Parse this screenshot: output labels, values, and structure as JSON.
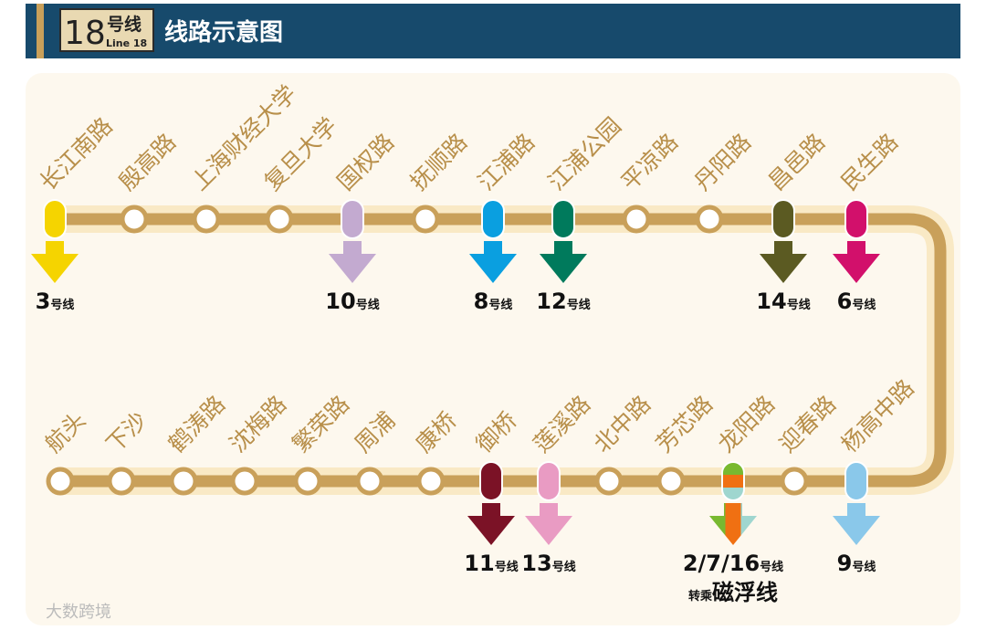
{
  "header": {
    "badge_number": "18",
    "badge_suffix": "号线",
    "badge_sub": "Line 18",
    "title": "线路示意图"
  },
  "top_stations": [
    {
      "name": "长江南路",
      "transfer": {
        "number": "3",
        "suffix": "号线",
        "colors": [
          "#f5d400"
        ]
      }
    },
    {
      "name": "殷高路"
    },
    {
      "name": "上海财经大学"
    },
    {
      "name": "复旦大学"
    },
    {
      "name": "国权路",
      "transfer": {
        "number": "10",
        "suffix": "号线",
        "colors": [
          "#c3aad0"
        ]
      }
    },
    {
      "name": "抚顺路"
    },
    {
      "name": "江浦路",
      "transfer": {
        "number": "8",
        "suffix": "号线",
        "colors": [
          "#0a9fe0"
        ]
      }
    },
    {
      "name": "江浦公园",
      "transfer": {
        "number": "12",
        "suffix": "号线",
        "colors": [
          "#007a5c"
        ]
      }
    },
    {
      "name": "平凉路"
    },
    {
      "name": "丹阳路"
    },
    {
      "name": "昌邑路",
      "transfer": {
        "number": "14",
        "suffix": "号线",
        "colors": [
          "#5b5a22"
        ]
      }
    },
    {
      "name": "民生路",
      "transfer": {
        "number": "6",
        "suffix": "号线",
        "colors": [
          "#d2106b"
        ]
      }
    }
  ],
  "bottom_stations": [
    {
      "name": "航头"
    },
    {
      "name": "下沙"
    },
    {
      "name": "鹤涛路"
    },
    {
      "name": "沈梅路"
    },
    {
      "name": "繁荣路"
    },
    {
      "name": "周浦"
    },
    {
      "name": "康桥"
    },
    {
      "name": "御桥",
      "transfer": {
        "number": "11",
        "suffix": "号线",
        "colors": [
          "#7b1226"
        ]
      }
    },
    {
      "name": "莲溪路",
      "transfer": {
        "number": "13",
        "suffix": "号线",
        "colors": [
          "#e99bc3"
        ]
      }
    },
    {
      "name": "北中路"
    },
    {
      "name": "芳芯路"
    },
    {
      "name": "龙阳路",
      "transfer": {
        "number": "2/7/16",
        "suffix": "号线",
        "colors": [
          "#78b930",
          "#f07012",
          "#9fd6cf"
        ],
        "note_prefix": "转乘",
        "note_name": "磁浮线"
      }
    },
    {
      "name": "迎春路"
    },
    {
      "name": "杨高中路",
      "transfer": {
        "number": "9",
        "suffix": "号线",
        "colors": [
          "#8ac8ea"
        ]
      }
    }
  ],
  "watermark": "大数跨境"
}
